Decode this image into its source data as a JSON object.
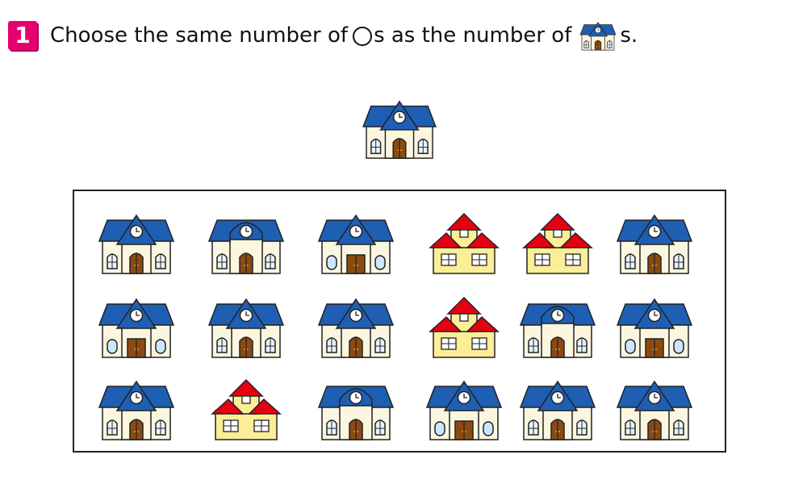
{
  "question": {
    "number": "1",
    "text_before": "Choose the same number of ",
    "text_middle": "s as the number of ",
    "text_after": "s."
  },
  "icons": {
    "badge": "number-badge",
    "circle": "circle-icon",
    "school": "school-building-icon",
    "house": "yellow-house-icon"
  },
  "colors": {
    "badge": "#e4006e",
    "roof_blue": "#1e5fb4",
    "roof_red": "#e60012",
    "wall_cream": "#fbf6df",
    "wall_yellow": "#fbee96",
    "door_brown": "#8b4a12"
  },
  "buildings": {
    "sample": "school",
    "grid": [
      [
        "school",
        "school-round",
        "school-wide",
        "house",
        "house",
        "school"
      ],
      [
        "school-wide",
        "school",
        "school",
        "house",
        "school-round",
        "school-wide"
      ],
      [
        "school",
        "house",
        "school-round",
        "school-wide",
        "school",
        "school"
      ]
    ]
  }
}
